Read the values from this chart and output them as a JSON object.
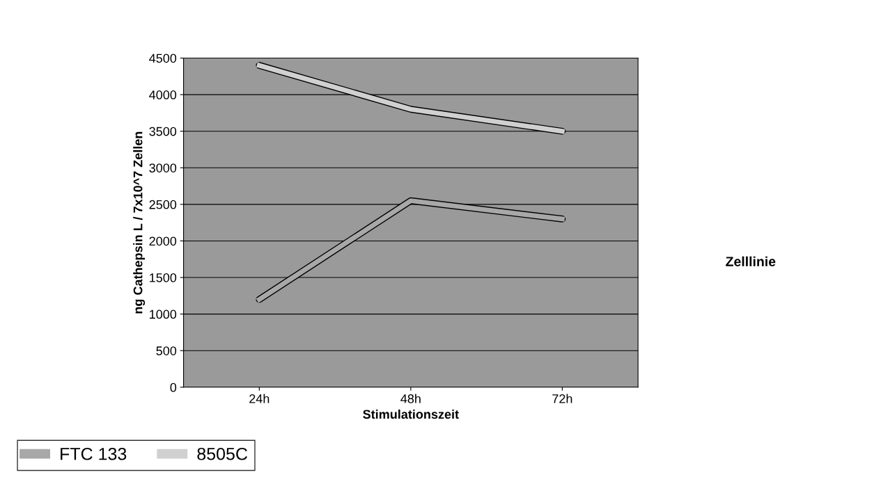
{
  "chart_data": {
    "type": "line",
    "xlabel": "Stimulationszeit",
    "ylabel": "ng Cathepsin L / 7x10^7 Zellen",
    "categories": [
      "24h",
      "48h",
      "72h"
    ],
    "series": [
      {
        "name": "FTC 133",
        "color": "#a8a8a8",
        "values": [
          1200,
          2550,
          2300
        ]
      },
      {
        "name": "8505C",
        "color": "#d0d0d0",
        "values": [
          4400,
          3800,
          3500
        ]
      }
    ],
    "ylim": [
      0,
      4500
    ],
    "yticks": [
      0,
      500,
      1000,
      1500,
      2000,
      2500,
      3000,
      3500,
      4000,
      4500
    ],
    "grid": "y",
    "legend": "bottom left",
    "line_style": "solid",
    "marker": "none",
    "annotations": [
      "Zelllinie"
    ]
  }
}
